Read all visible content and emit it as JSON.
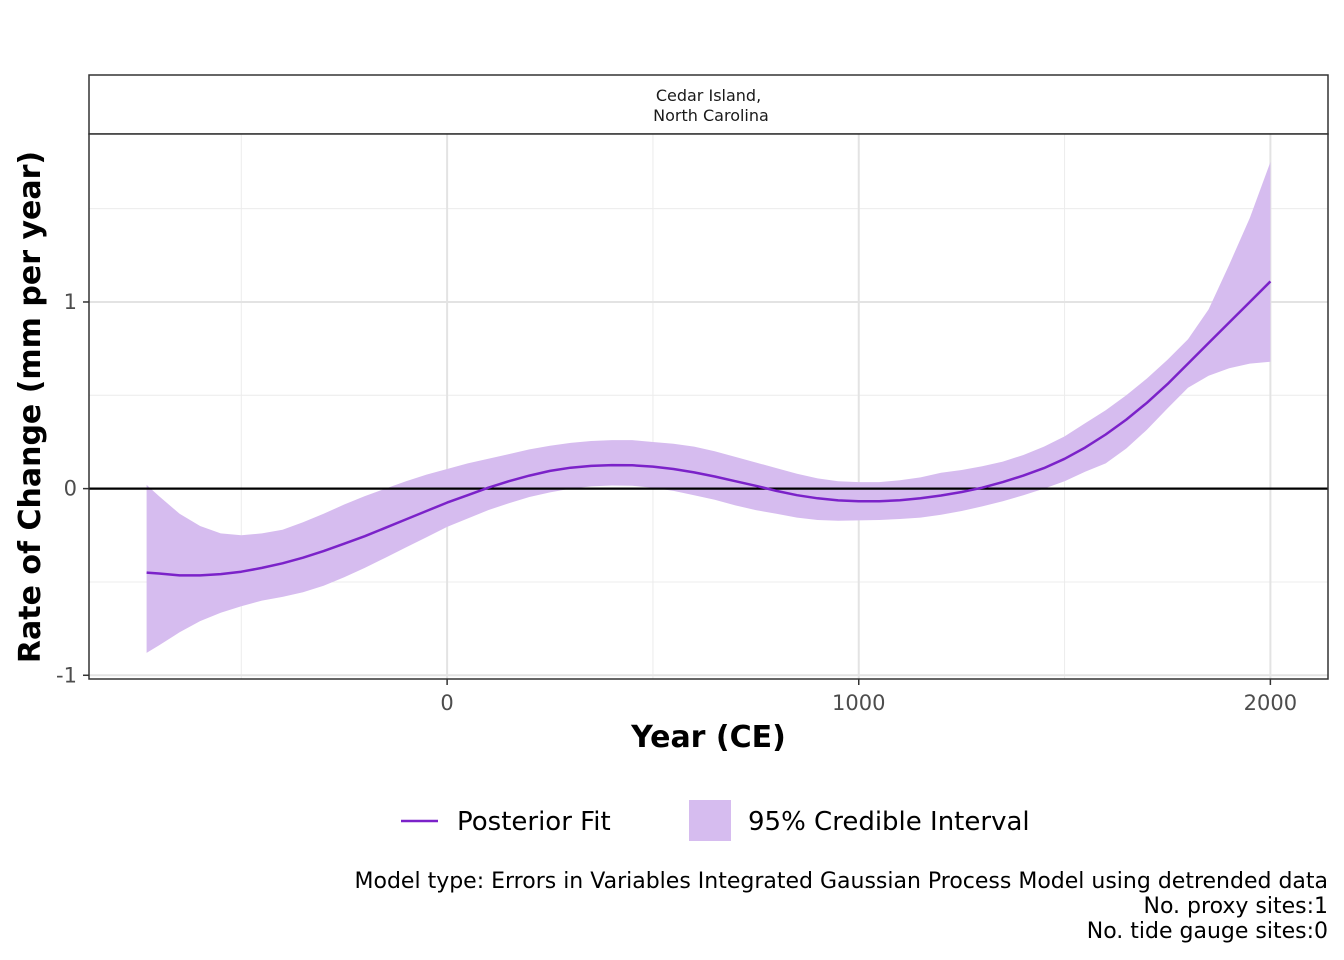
{
  "chart_data": {
    "type": "line",
    "facet_label_line1": "Cedar Island,",
    "facet_label_line2": "North Carolina",
    "xlabel": "Year (CE)",
    "ylabel": "Rate of Change (mm per year)",
    "xlim": [
      -870,
      2140
    ],
    "ylim": [
      -1.02,
      1.9
    ],
    "x_ticks": [
      0,
      1000,
      2000
    ],
    "x_tick_labels": [
      "0",
      "1000",
      "2000"
    ],
    "y_ticks": [
      -1,
      0,
      1
    ],
    "y_tick_labels": [
      "-1",
      "0",
      "1"
    ],
    "grid": true,
    "reference_line_y": 0,
    "legend_position": "bottom",
    "series": [
      {
        "name": "Posterior Fit",
        "color": "#7B22C9",
        "x": [
          -730,
          -700,
          -650,
          -600,
          -550,
          -500,
          -450,
          -400,
          -350,
          -300,
          -250,
          -200,
          -150,
          -100,
          -50,
          0,
          50,
          100,
          150,
          200,
          250,
          300,
          350,
          400,
          450,
          500,
          550,
          600,
          650,
          700,
          750,
          800,
          850,
          900,
          950,
          1000,
          1050,
          1100,
          1150,
          1200,
          1250,
          1300,
          1350,
          1400,
          1450,
          1500,
          1550,
          1600,
          1650,
          1700,
          1750,
          1800,
          1850,
          1900,
          1950,
          2000
        ],
        "y": [
          -0.45,
          -0.455,
          -0.465,
          -0.465,
          -0.458,
          -0.445,
          -0.425,
          -0.4,
          -0.37,
          -0.335,
          -0.295,
          -0.255,
          -0.21,
          -0.165,
          -0.12,
          -0.075,
          -0.035,
          0.005,
          0.04,
          0.07,
          0.095,
          0.112,
          0.122,
          0.126,
          0.125,
          0.118,
          0.105,
          0.087,
          0.065,
          0.04,
          0.015,
          -0.012,
          -0.035,
          -0.052,
          -0.063,
          -0.068,
          -0.068,
          -0.062,
          -0.052,
          -0.037,
          -0.018,
          0.005,
          0.035,
          0.07,
          0.11,
          0.16,
          0.22,
          0.29,
          0.37,
          0.46,
          0.56,
          0.67,
          0.78,
          0.89,
          1.0,
          1.11
        ]
      },
      {
        "name": "95% Credible Interval",
        "color": "#D6BCEF",
        "x": [
          -730,
          -700,
          -650,
          -600,
          -550,
          -500,
          -450,
          -400,
          -350,
          -300,
          -250,
          -200,
          -150,
          -100,
          -50,
          0,
          50,
          100,
          150,
          200,
          250,
          300,
          350,
          400,
          450,
          500,
          550,
          600,
          650,
          700,
          750,
          800,
          850,
          900,
          950,
          1000,
          1050,
          1100,
          1150,
          1200,
          1250,
          1300,
          1350,
          1400,
          1450,
          1500,
          1550,
          1600,
          1650,
          1700,
          1750,
          1800,
          1850,
          1900,
          1950,
          2000
        ],
        "lower": [
          -0.88,
          -0.84,
          -0.77,
          -0.71,
          -0.665,
          -0.63,
          -0.6,
          -0.58,
          -0.555,
          -0.52,
          -0.475,
          -0.425,
          -0.37,
          -0.315,
          -0.26,
          -0.205,
          -0.16,
          -0.115,
          -0.078,
          -0.045,
          -0.02,
          0.0,
          0.012,
          0.017,
          0.015,
          0.005,
          -0.012,
          -0.035,
          -0.06,
          -0.09,
          -0.115,
          -0.135,
          -0.155,
          -0.168,
          -0.172,
          -0.17,
          -0.168,
          -0.163,
          -0.155,
          -0.14,
          -0.12,
          -0.095,
          -0.068,
          -0.035,
          0.0,
          0.04,
          0.09,
          0.135,
          0.215,
          0.315,
          0.43,
          0.54,
          0.605,
          0.645,
          0.67,
          0.68
        ],
        "upper": [
          0.02,
          -0.04,
          -0.135,
          -0.2,
          -0.24,
          -0.25,
          -0.24,
          -0.22,
          -0.18,
          -0.135,
          -0.085,
          -0.04,
          0.0,
          0.04,
          0.075,
          0.105,
          0.135,
          0.16,
          0.185,
          0.21,
          0.23,
          0.245,
          0.255,
          0.26,
          0.26,
          0.25,
          0.24,
          0.225,
          0.2,
          0.17,
          0.14,
          0.11,
          0.08,
          0.055,
          0.04,
          0.035,
          0.035,
          0.045,
          0.06,
          0.085,
          0.1,
          0.12,
          0.145,
          0.18,
          0.225,
          0.28,
          0.35,
          0.42,
          0.5,
          0.59,
          0.69,
          0.8,
          0.96,
          1.2,
          1.45,
          1.75
        ]
      }
    ],
    "legend": {
      "line_label": "Posterior Fit",
      "band_label": "95% Credible Interval"
    }
  },
  "caption": {
    "model_type": "Model type: Errors in Variables Integrated Gaussian Process Model using detrended data",
    "proxy_sites": "No. proxy sites:1",
    "tide_gauge_sites": "No. tide gauge sites:0"
  }
}
